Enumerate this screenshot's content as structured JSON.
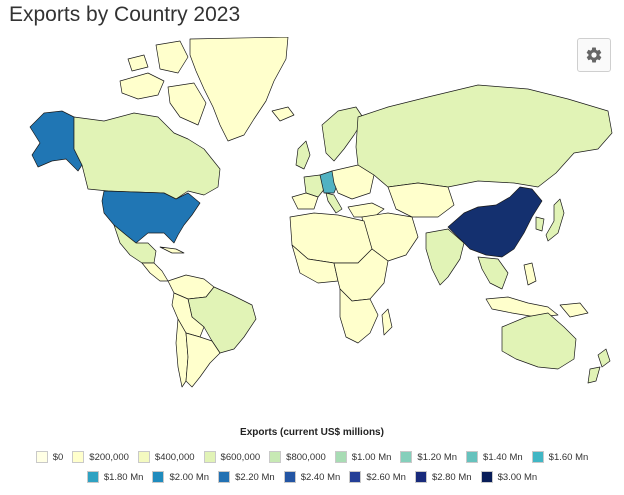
{
  "title": "Exports by Country 2023",
  "map": {
    "colors": {
      "ocean": "#ffffff",
      "border": "#1a1a1a",
      "lowest": "#ffffcc",
      "low": "#e1f3b6",
      "germany": "#51b2c2",
      "usa": "#2076b4",
      "alaska": "#2076b4",
      "china": "#14306f"
    }
  },
  "legend": {
    "title": "Exports (current US$ millions)",
    "row1": [
      {
        "label": "$0",
        "color": "#ffffe5"
      },
      {
        "label": "$200,000",
        "color": "#ffffcc"
      },
      {
        "label": "$400,000",
        "color": "#f4fac0"
      },
      {
        "label": "$600,000",
        "color": "#e1f3b6"
      },
      {
        "label": "$800,000",
        "color": "#c7e9b4"
      },
      {
        "label": "$1.00 Mn",
        "color": "#a8dcb4"
      },
      {
        "label": "$1.20 Mn",
        "color": "#85cfbb"
      },
      {
        "label": "$1.40 Mn",
        "color": "#66c2bd"
      },
      {
        "label": "$1.60 Mn",
        "color": "#41b6c4"
      }
    ],
    "row2": [
      {
        "label": "$1.80 Mn",
        "color": "#2fa2c2"
      },
      {
        "label": "$2.00 Mn",
        "color": "#1f8bbd"
      },
      {
        "label": "$2.20 Mn",
        "color": "#2271b3"
      },
      {
        "label": "$2.40 Mn",
        "color": "#2355a3"
      },
      {
        "label": "$2.60 Mn",
        "color": "#243f97"
      },
      {
        "label": "$2.80 Mn",
        "color": "#182a7b"
      },
      {
        "label": "$3.00 Mn",
        "color": "#081d58"
      }
    ]
  }
}
